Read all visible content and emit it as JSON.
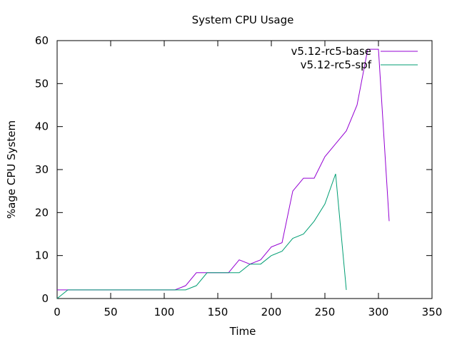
{
  "chart_data": {
    "type": "line",
    "title": "System CPU Usage",
    "xlabel": "Time",
    "ylabel": "%age CPU System",
    "xlim": [
      0,
      350
    ],
    "ylim": [
      0,
      60
    ],
    "xticks": [
      0,
      50,
      100,
      150,
      200,
      250,
      300,
      350
    ],
    "yticks": [
      0,
      10,
      20,
      30,
      40,
      50,
      60
    ],
    "grid": false,
    "legend_position": "top-right",
    "series": [
      {
        "name": "v5.12-rc5-base",
        "color": "#9400d3",
        "x": [
          0,
          10,
          20,
          30,
          40,
          50,
          60,
          70,
          80,
          90,
          100,
          110,
          120,
          130,
          140,
          150,
          160,
          170,
          180,
          190,
          200,
          210,
          220,
          230,
          240,
          250,
          260,
          270,
          280,
          290,
          300,
          310
        ],
        "y": [
          2,
          2,
          2,
          2,
          2,
          2,
          2,
          2,
          2,
          2,
          2,
          2,
          3,
          6,
          6,
          6,
          6,
          9,
          8,
          9,
          12,
          13,
          25,
          28,
          28,
          33,
          36,
          39,
          45,
          58,
          58,
          18
        ]
      },
      {
        "name": "v5.12-rc5-spf",
        "color": "#009e73",
        "x": [
          0,
          10,
          20,
          30,
          40,
          50,
          60,
          70,
          80,
          90,
          100,
          110,
          120,
          130,
          140,
          150,
          160,
          170,
          180,
          190,
          200,
          210,
          220,
          230,
          240,
          250,
          260,
          270
        ],
        "y": [
          0,
          2,
          2,
          2,
          2,
          2,
          2,
          2,
          2,
          2,
          2,
          2,
          2,
          3,
          6,
          6,
          6,
          6,
          8,
          8,
          10,
          11,
          14,
          15,
          18,
          22,
          29,
          2
        ]
      }
    ]
  }
}
